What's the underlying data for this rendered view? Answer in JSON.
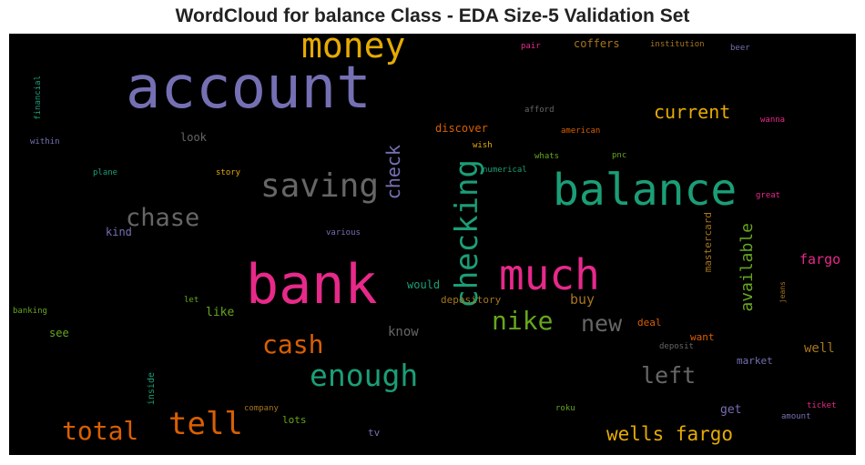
{
  "title": "WordCloud for balance Class - EDA Size-5 Validation Set",
  "palette": {
    "purple": "#7570b3",
    "green": "#1b9e77",
    "orange": "#d95f02",
    "pink": "#e7298a",
    "olive": "#66a61e",
    "gold": "#e6ab02",
    "brown": "#a6761d",
    "gray": "#666666"
  },
  "words": [
    {
      "text": "account",
      "color": "#7570b3"
    },
    {
      "text": "money",
      "color": "#e6ab02"
    },
    {
      "text": "balance",
      "color": "#1b9e77"
    },
    {
      "text": "bank",
      "color": "#e7298a"
    },
    {
      "text": "much",
      "color": "#e7298a"
    },
    {
      "text": "checking",
      "color": "#1b9e77"
    },
    {
      "text": "saving",
      "color": "#666666"
    },
    {
      "text": "chase",
      "color": "#666666"
    },
    {
      "text": "enough",
      "color": "#1b9e77"
    },
    {
      "text": "tell",
      "color": "#d95f02"
    },
    {
      "text": "total",
      "color": "#d95f02"
    },
    {
      "text": "cash",
      "color": "#d95f02"
    },
    {
      "text": "nike",
      "color": "#66a61e"
    },
    {
      "text": "new",
      "color": "#666666"
    },
    {
      "text": "left",
      "color": "#666666"
    },
    {
      "text": "current",
      "color": "#e6ab02"
    },
    {
      "text": "wells fargo",
      "color": "#e6ab02"
    },
    {
      "text": "check",
      "color": "#7570b3"
    },
    {
      "text": "available",
      "color": "#66a61e"
    },
    {
      "text": "fargo",
      "color": "#e7298a"
    },
    {
      "text": "buy",
      "color": "#a6761d"
    },
    {
      "text": "mastercard",
      "color": "#a6761d"
    },
    {
      "text": "well",
      "color": "#a6761d"
    },
    {
      "text": "discover",
      "color": "#d95f02"
    },
    {
      "text": "coffers",
      "color": "#a6761d"
    },
    {
      "text": "know",
      "color": "#666666"
    },
    {
      "text": "like",
      "color": "#66a61e"
    },
    {
      "text": "would",
      "color": "#1b9e77"
    },
    {
      "text": "depository",
      "color": "#a6761d"
    },
    {
      "text": "deal",
      "color": "#d95f02"
    },
    {
      "text": "want",
      "color": "#d95f02"
    },
    {
      "text": "get",
      "color": "#7570b3"
    },
    {
      "text": "market",
      "color": "#7570b3"
    },
    {
      "text": "look",
      "color": "#666666"
    },
    {
      "text": "kind",
      "color": "#7570b3"
    },
    {
      "text": "see",
      "color": "#66a61e"
    },
    {
      "text": "lots",
      "color": "#66a61e"
    },
    {
      "text": "tv",
      "color": "#7570b3"
    },
    {
      "text": "inside",
      "color": "#1b9e77"
    },
    {
      "text": "financial",
      "color": "#1b9e77"
    },
    {
      "text": "within",
      "color": "#7570b3"
    },
    {
      "text": "plane",
      "color": "#1b9e77"
    },
    {
      "text": "story",
      "color": "#e6ab02"
    },
    {
      "text": "wish",
      "color": "#e6ab02"
    },
    {
      "text": "numerical",
      "color": "#1b9e77"
    },
    {
      "text": "whats",
      "color": "#66a61e"
    },
    {
      "text": "pnc",
      "color": "#66a61e"
    },
    {
      "text": "american",
      "color": "#d95f02"
    },
    {
      "text": "afford",
      "color": "#666666"
    },
    {
      "text": "pair",
      "color": "#e7298a"
    },
    {
      "text": "institution",
      "color": "#a6761d"
    },
    {
      "text": "beer",
      "color": "#7570b3"
    },
    {
      "text": "wanna",
      "color": "#e7298a"
    },
    {
      "text": "great",
      "color": "#e7298a"
    },
    {
      "text": "various",
      "color": "#7570b3"
    },
    {
      "text": "let",
      "color": "#66a61e"
    },
    {
      "text": "banking",
      "color": "#66a61e"
    },
    {
      "text": "jeans",
      "color": "#a6761d"
    },
    {
      "text": "deposit",
      "color": "#666666"
    },
    {
      "text": "company",
      "color": "#a6761d"
    },
    {
      "text": "roku",
      "color": "#66a61e"
    },
    {
      "text": "ticket",
      "color": "#e7298a"
    },
    {
      "text": "amount",
      "color": "#7570b3"
    }
  ]
}
